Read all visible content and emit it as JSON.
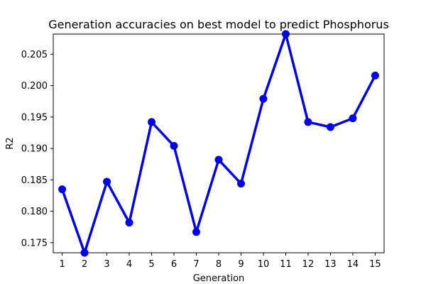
{
  "chart_data": {
    "type": "line",
    "title": "Generation accuracies on best model to predict Phosphorus",
    "xlabel": "Generation",
    "ylabel": "R2",
    "categories": [
      "1",
      "2",
      "3",
      "4",
      "5",
      "6",
      "7",
      "8",
      "9",
      "10",
      "11",
      "12",
      "13",
      "14",
      "15"
    ],
    "x": [
      1,
      2,
      3,
      4,
      5,
      6,
      7,
      8,
      9,
      10,
      11,
      12,
      13,
      14,
      15
    ],
    "values": [
      0.1835,
      0.1734,
      0.1847,
      0.1782,
      0.1942,
      0.1904,
      0.1767,
      0.1882,
      0.1844,
      0.1979,
      0.2082,
      0.1942,
      0.1934,
      0.1948,
      0.2016
    ],
    "ylim": [
      0.1734,
      0.2082
    ],
    "yticks": [
      0.175,
      0.18,
      0.185,
      0.19,
      0.195,
      0.2,
      0.205
    ],
    "ytick_labels": [
      "0.175",
      "0.180",
      "0.185",
      "0.190",
      "0.195",
      "0.200",
      "0.205"
    ],
    "grid": false,
    "legend": "none",
    "colors": {
      "line": "#0000ee",
      "marker": "#0000ee",
      "axes": "#000000",
      "background": "#ffffff"
    }
  }
}
